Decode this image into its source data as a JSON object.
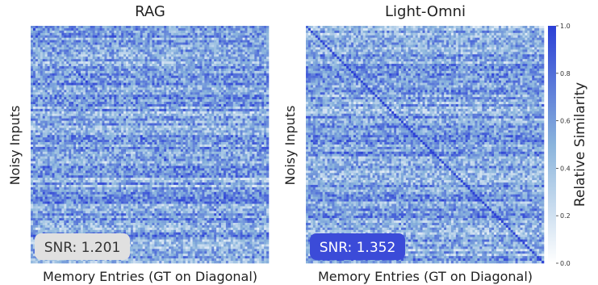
{
  "chart_data": [
    {
      "type": "heatmap",
      "title": "RAG",
      "xlabel": "Memory Entries (GT on Diagonal)",
      "ylabel": "Noisy Inputs",
      "grid": false,
      "value_range": [
        0.0,
        1.0
      ],
      "diagonal": "weak",
      "annotation": {
        "label": "SNR",
        "value": "1.201",
        "box_color": "#e0e0e0",
        "text_color": "#333333"
      }
    },
    {
      "type": "heatmap",
      "title": "Light-Omni",
      "xlabel": "Memory Entries (GT on Diagonal)",
      "ylabel": "Noisy Inputs",
      "grid": false,
      "value_range": [
        0.0,
        1.0
      ],
      "diagonal": "strong",
      "annotation": {
        "label": "SNR",
        "value": "1.352",
        "box_color": "#3b4bd8",
        "text_color": "#ffffff"
      }
    }
  ],
  "colorbar": {
    "label": "Relative Similarity",
    "ticks": [
      "0.0",
      "0.2",
      "0.4",
      "0.6",
      "0.8",
      "1.0"
    ],
    "colors": {
      "low": "#ffffff",
      "mid": "#8ab4dc",
      "high": "#2b3fd6"
    }
  },
  "snr_texts": [
    "SNR: 1.201",
    "SNR: 1.352"
  ]
}
